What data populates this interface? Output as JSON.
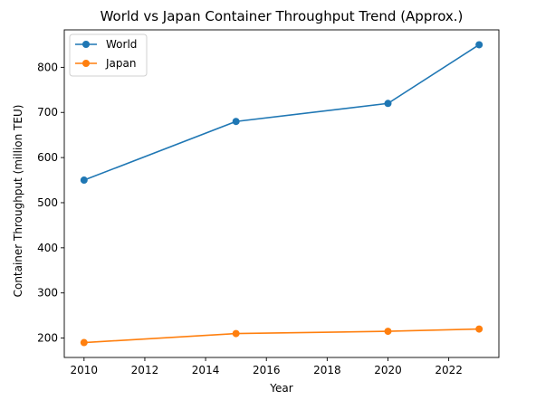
{
  "chart_data": {
    "type": "line",
    "title": "World vs Japan Container Throughput Trend (Approx.)",
    "xlabel": "Year",
    "ylabel": "Container Throughput (million TEU)",
    "xlim": [
      2009.35,
      2023.65
    ],
    "ylim": [
      157,
      883
    ],
    "xticks": [
      2010,
      2012,
      2014,
      2016,
      2018,
      2020,
      2022
    ],
    "yticks": [
      200,
      300,
      400,
      500,
      600,
      700,
      800
    ],
    "grid": false,
    "legend_position": "top-left",
    "series": [
      {
        "name": "World",
        "color": "#1f77b4",
        "marker": "circle",
        "x": [
          2010,
          2015,
          2020,
          2023
        ],
        "y": [
          550,
          680,
          720,
          850
        ]
      },
      {
        "name": "Japan",
        "color": "#ff7f0e",
        "marker": "circle",
        "x": [
          2010,
          2015,
          2020,
          2023
        ],
        "y": [
          190,
          210,
          215,
          220
        ]
      }
    ]
  }
}
